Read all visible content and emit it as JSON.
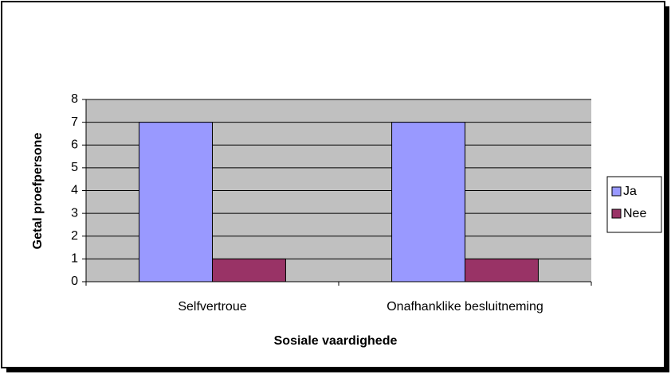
{
  "chart_data": {
    "type": "bar",
    "categories": [
      "Selfvertroue",
      "Onafhanklike besluitneming"
    ],
    "series": [
      {
        "name": "Ja",
        "color": "#9999ff",
        "values": [
          7,
          7
        ]
      },
      {
        "name": "Nee",
        "color": "#993366",
        "values": [
          1,
          1
        ]
      }
    ],
    "x_label": "Sosiale vaardighede",
    "y_label": "Getal proefpersone",
    "ylim": [
      0,
      8
    ],
    "yticks": [
      0,
      1,
      2,
      3,
      4,
      5,
      6,
      7,
      8
    ],
    "grid": true,
    "legend": "right"
  }
}
